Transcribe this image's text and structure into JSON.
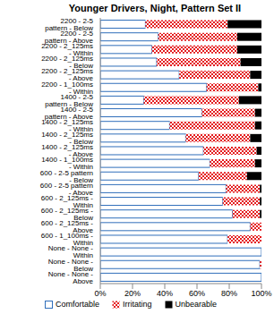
{
  "chart_data": {
    "type": "bar",
    "title": "Younger Drivers, Night, Pattern Set II",
    "orientation": "horizontal",
    "stacked": true,
    "grid": false,
    "legend": "bottom",
    "categories": [
      "2200 - 2-5 pattern - Below",
      "2200 - 2-5 pattern - Above",
      "2200 - 2_125ms - Within",
      "2200 - 2_125ms - Below",
      "2200 - 2_125ms - Above",
      "2200 - 1_100ms - Within",
      "1400 - 2-5 pattern - Below",
      "1400 - 2-5 pattern - Above",
      "1400 - 2_125ms - Within",
      "1400 - 2_125ms - Below",
      "1400 - 2_125ms - Above",
      "1400 - 1_100ms - Within",
      "600 - 2-5 pattern - Below",
      "600 - 2-5 pattern - Above",
      "600 - 2_125ms - Within",
      "600 - 2_125ms - Below",
      "600 - 2_125ms - Above",
      "600 - 1_100ms - Within",
      "None - None - Within",
      "None - None - Below",
      "None - None - Above"
    ],
    "series": [
      {
        "name": "Comfortable",
        "color": "#2f6eba",
        "values": [
          28,
          36,
          32,
          35,
          49,
          66,
          27,
          63,
          43,
          53,
          64,
          68,
          61,
          78,
          76,
          82,
          93,
          79,
          100,
          99,
          100
        ]
      },
      {
        "name": "Irritating",
        "color": "#e41a1c",
        "values": [
          51,
          49,
          53,
          52,
          44,
          32,
          59,
          33,
          53,
          40,
          33,
          28,
          30,
          21,
          23,
          17,
          7,
          21,
          0,
          1,
          0
        ]
      },
      {
        "name": "Unbearable",
        "color": "#000000",
        "values": [
          21,
          15,
          15,
          13,
          7,
          2,
          14,
          4,
          4,
          7,
          3,
          4,
          9,
          1,
          1,
          1,
          0,
          0,
          0,
          0,
          0
        ]
      }
    ],
    "xlim": [
      0,
      100
    ],
    "xticks": [
      {
        "value": 0,
        "label": "0%"
      },
      {
        "value": 20,
        "label": "20%"
      },
      {
        "value": 40,
        "label": "40%"
      },
      {
        "value": 60,
        "label": "60%"
      },
      {
        "value": 80,
        "label": "80%"
      },
      {
        "value": 100,
        "label": "100%"
      }
    ]
  }
}
